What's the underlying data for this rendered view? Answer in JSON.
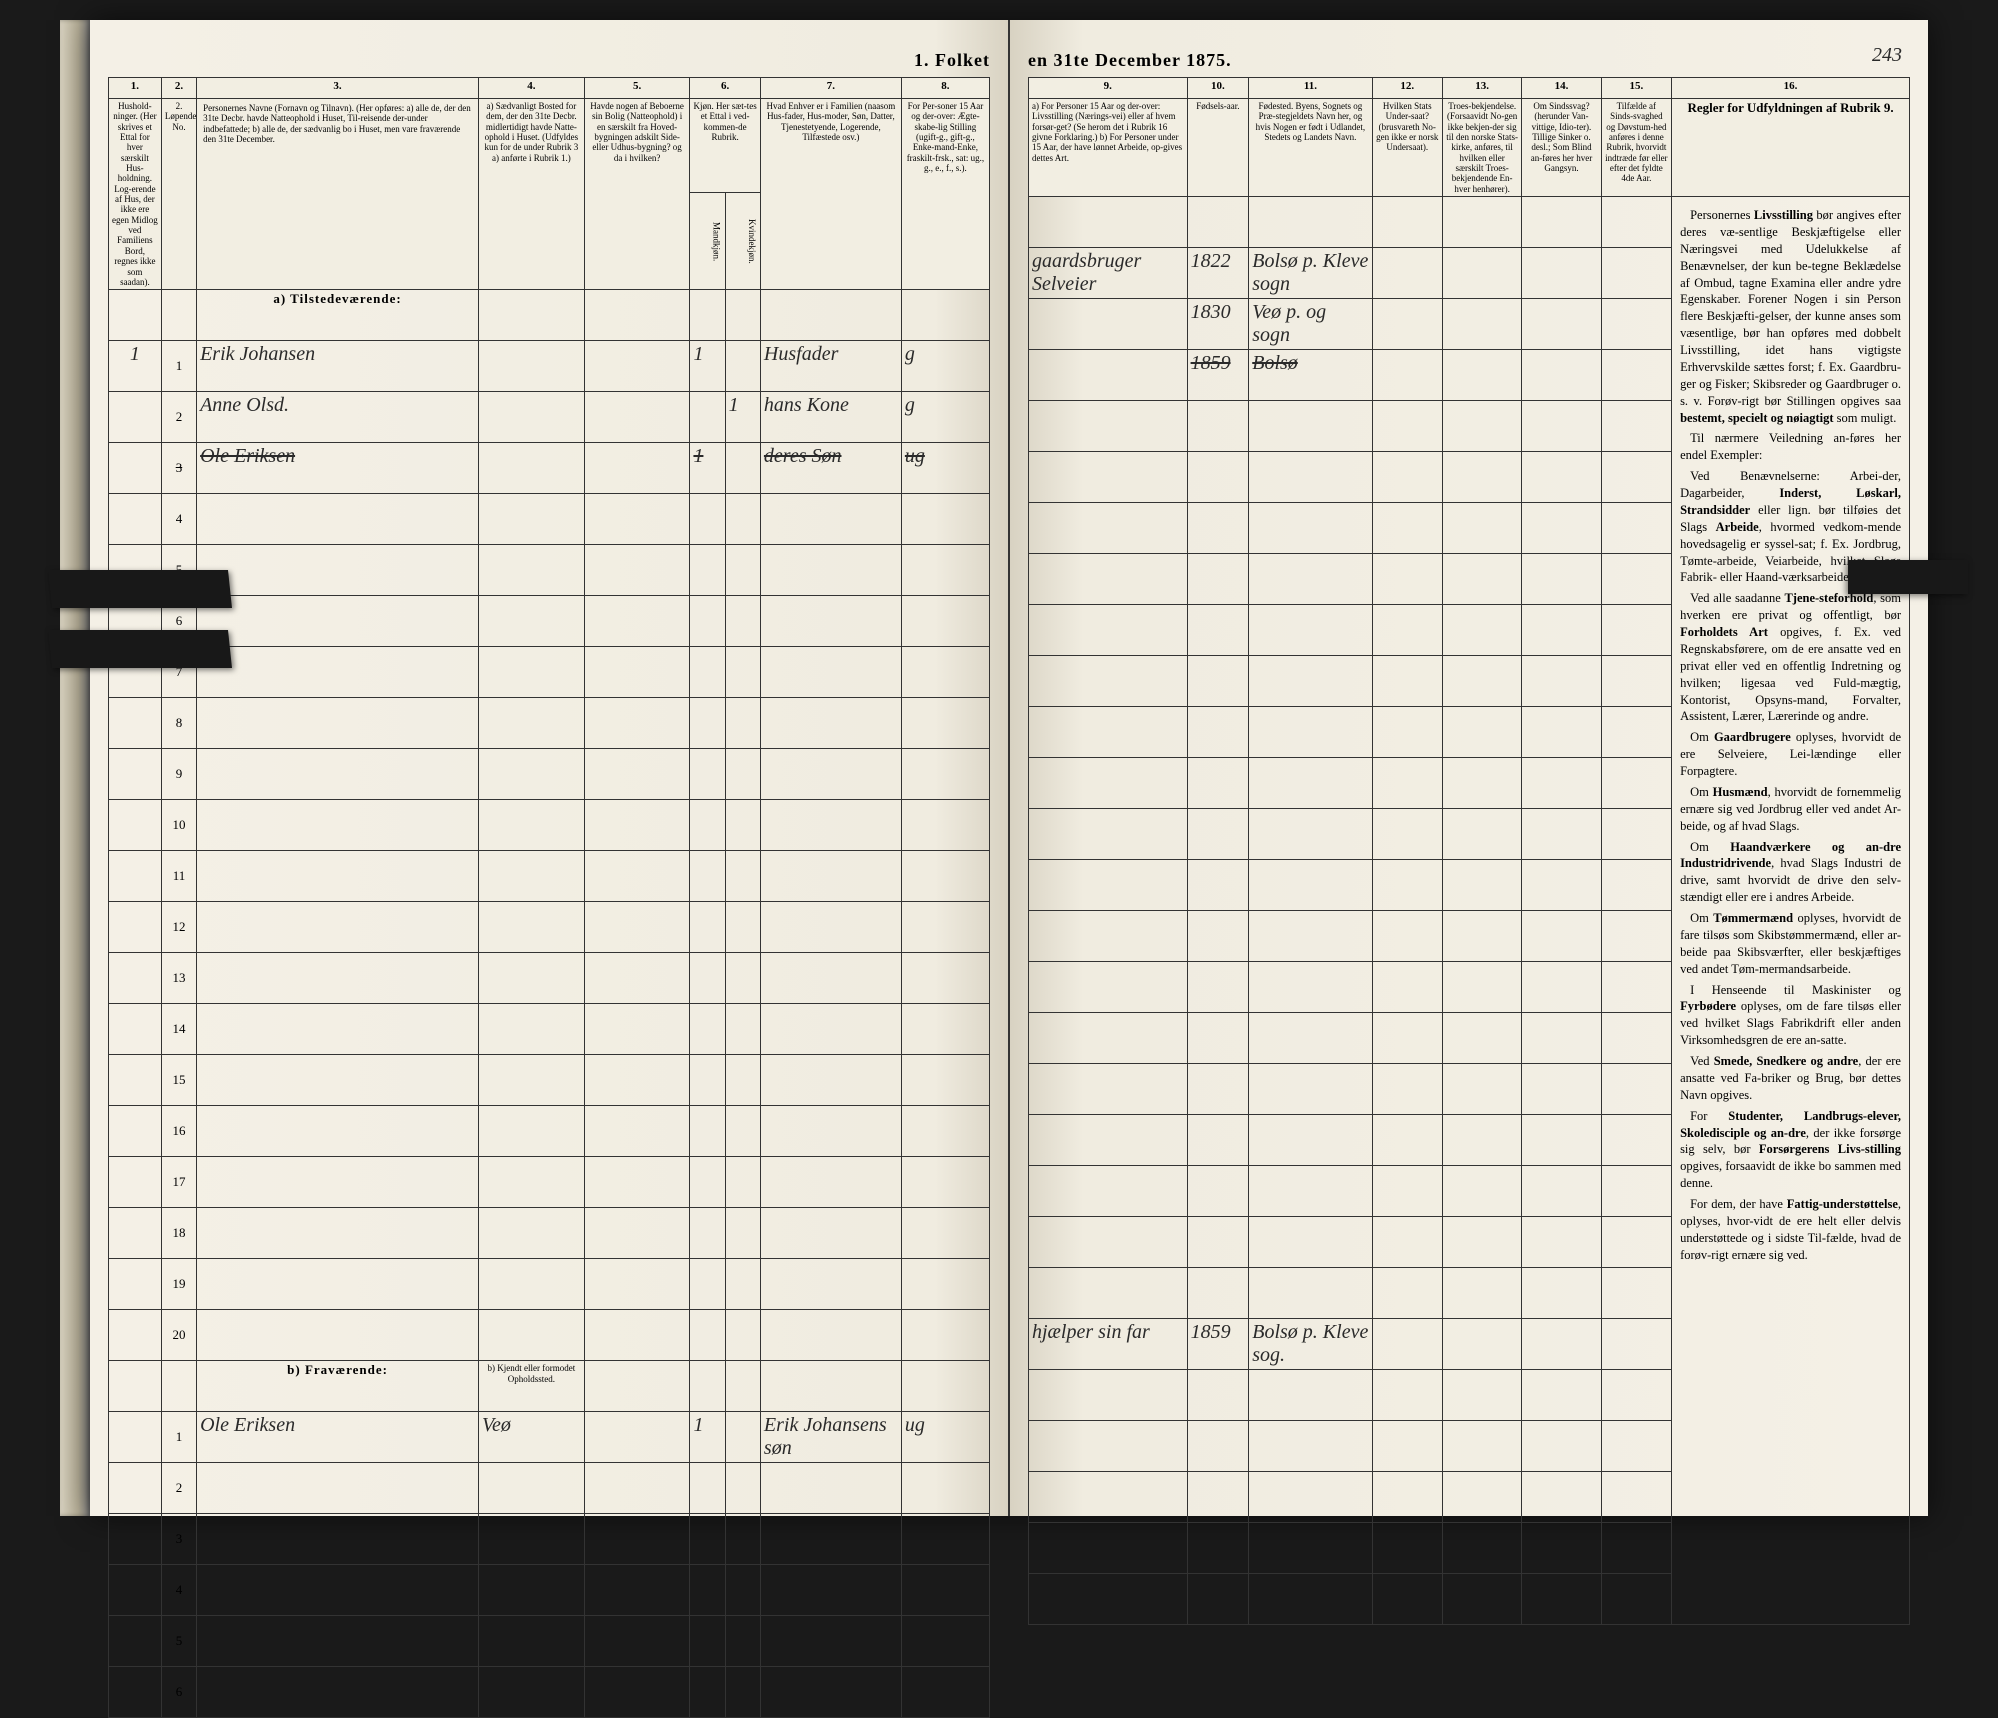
{
  "header": {
    "title_left": "1.  Folket",
    "title_right": "en 31te December 1875.",
    "page_number": "243"
  },
  "left": {
    "colnums": [
      "1.",
      "2.",
      "3.",
      "4.",
      "5.",
      "6.",
      "7.",
      "8."
    ],
    "heads": {
      "c1": "Hushold-\nninger.\n(Her skrives et Ettal for hver særskilt Hus-holdning. Log-erende af Hus, der ikke ere egen Midlog ved Familiens Bord, regnes ikke som saadan).",
      "c2": "2.\nLøpende No.",
      "c3": "Personernes Navne (Fornavn og Tilnavn).\n(Her opføres:\na)  alle de, der den 31te Decbr. havde Natteophold i Huset, Til-reisende der-under indbefattede;\nb)  alle de, der sædvanlig bo i Huset, men vare fraværende den 31te December.",
      "c4": "a)  Sædvanligt Bosted for dem, der den 31te Decbr. midlertidigt havde Natte-ophold i Huset. (Udfyldes kun for de under Rubrik 3 a) anførte i Rubrik 1.)",
      "c5": "Havde nogen af Beboerne sin Bolig (Natteophold) i en særskilt fra Hoved-bygningen adskilt Side-eller Udhus-bygning? og da i hvilken?",
      "c6": "Kjøn.\nHer sæt-tes et Ettal i ved-kommen-de Rubrik.",
      "c6a": "Mandkjøn.",
      "c6b": "Kvindekjøn.",
      "c7": "Hvad Enhver er i Familien (naasom Hus-fader, Hus-moder, Søn, Datter, Tjenestetyende, Logerende, Tilfæstede osv.)",
      "c8": "For Per-soner 15 Aar og der-over: Ægte-skabe-lig Stilling (ugift-g., gift-g., Enke-mand-Enke, fraskilt-frsk., sat: ug., g., e., f., s.)."
    },
    "section_a": "a)  Tilstedeværende:",
    "rows_a": [
      {
        "n": "1",
        "hh": "1",
        "name": "Erik Johansen",
        "c4": "",
        "c5": "",
        "m": "1",
        "k": "",
        "rel": "Husfader",
        "stat": "g"
      },
      {
        "n": "2",
        "hh": "",
        "name": "Anne Olsd.",
        "c4": "",
        "c5": "",
        "m": "",
        "k": "1",
        "rel": "hans Kone",
        "stat": "g"
      },
      {
        "n": "3",
        "hh": "",
        "name": "Ole Eriksen",
        "c4": "",
        "c5": "",
        "m": "1",
        "k": "",
        "rel": "deres Søn",
        "stat": "ug",
        "strike": true
      },
      {
        "n": "4"
      },
      {
        "n": "5"
      },
      {
        "n": "6"
      },
      {
        "n": "7"
      },
      {
        "n": "8"
      },
      {
        "n": "9"
      },
      {
        "n": "10"
      },
      {
        "n": "11"
      },
      {
        "n": "12"
      },
      {
        "n": "13"
      },
      {
        "n": "14"
      },
      {
        "n": "15"
      },
      {
        "n": "16"
      },
      {
        "n": "17"
      },
      {
        "n": "18"
      },
      {
        "n": "19"
      },
      {
        "n": "20"
      }
    ],
    "section_b": "b)  Fraværende:",
    "section_b_c4": "b)  Kjendt eller formodet Opholdssted.",
    "rows_b": [
      {
        "n": "1",
        "hh": "",
        "name": "Ole Eriksen",
        "c4": "Veø",
        "c5": "",
        "m": "1",
        "k": "",
        "rel": "Erik Johansens søn",
        "stat": "ug"
      },
      {
        "n": "2"
      },
      {
        "n": "3"
      },
      {
        "n": "4"
      },
      {
        "n": "5"
      },
      {
        "n": "6"
      }
    ]
  },
  "right": {
    "colnums": [
      "9.",
      "10.",
      "11.",
      "12.",
      "13.",
      "14.",
      "15.",
      "16."
    ],
    "heads": {
      "c9": "a) For Personer 15 Aar og der-over: Livsstilling (Nærings-vei) eller af hvem forsør-get? (Se herom det i Rubrik 16 givne Forklaring.)\nb) For Personer under 15 Aar, der have lønnet Arbeide, op-gives dettes Art.",
      "c10": "Fødsels-aar.",
      "c11": "Fødested.\nByens, Sognets og Præ-stegjeldets Navn her, og hvis Nogen er født i Udlandet, Stedets og Landets Navn.",
      "c12": "Hvilken Stats Under-saat?\n(brusvareth No-gen ikke er norsk Undersaat).",
      "c13": "Troes-bekjendelse.\n(Forsaavidt No-gen ikke bekjen-der sig til den norske Stats-kirke, anføres, til hvilken eller særskilt Troes-bekjendende En-hver henhører).",
      "c14": "Om Sindssvag? (herunder Van-vittige, Idio-ter). Tillige Sinker o. desl.; Som Blind an-føres her hver Gangsyn.",
      "c15": "Tilfælde af Sinds-svaghed og Døvstum-hed anføres i denne Rubrik, hvorvidt indtræde før eller efter det fyldte 4de Aar.",
      "c16": "Regler for Udfyldningen\naf\nRubrik 9."
    },
    "rows_a": [
      {
        "occ": "gaardsbruger Selveier",
        "yr": "1822",
        "birth": "Bolsø p. Kleve sogn"
      },
      {
        "occ": "",
        "yr": "1830",
        "birth": "Veø p. og sogn"
      },
      {
        "occ": "",
        "yr": "1859",
        "birth": "Bolsø",
        "strike": true
      },
      {},
      {},
      {},
      {},
      {},
      {},
      {},
      {},
      {},
      {},
      {},
      {},
      {},
      {},
      {},
      {},
      {}
    ],
    "rows_b": [
      {
        "occ": "hjælper sin far",
        "yr": "1859",
        "birth": "Bolsø p. Kleve sog."
      },
      {},
      {},
      {},
      {},
      {}
    ],
    "rules": [
      "Personernes <b>Livsstilling</b> bør angives efter deres væ-sentlige Beskjæftigelse eller Næringsvei med Udelukkelse af Benævnelser, der kun be-tegne Beklædelse af Ombud, tagne Examina eller andre ydre Egenskaber. Forener Nogen i sin Person flere Beskjæfti-gelser, der kunne anses som væsentlige, bør han opføres med dobbelt Livsstilling, idet hans vigtigste Erhvervskilde sættes forst; f. Ex. Gaardbru-ger og Fisker; Skibsreder og Gaardbruger o. s. v. Forøv-rigt bør Stillingen opgives saa <b>bestemt, specielt og nøiagtigt</b> som muligt.",
      "Til nærmere Veiledning an-føres her endel Exempler:",
      "Ved Benævnelserne: Arbei-der, Dagarbeider, <b>Inderst, Løskarl, Strandsidder</b> eller lign. bør tilføies det Slags <b>Arbeide</b>, hvormed vedkom-mende hovedsagelig er syssel-sat; f. Ex. Jordbrug, Tømte-arbeide, Veiarbeide, hvilket Slags Fabrik- eller Haand-værksarbeide o. s. v.",
      "Ved alle saadanne <b>Tjene-steforhold</b>, som hverken ere privat og offentligt, bør <b>Forholdets Art</b> opgives, f. Ex. ved Regnskabsførere, om de ere ansatte ved en privat eller ved en offentlig Indretning og hvilken; ligesaa ved Fuld-mægtig, Kontorist, Opsyns-mand, Forvalter, Assistent, Lærer, Lærerinde og andre.",
      "Om <b>Gaardbrugere</b> oplyses, hvorvidt de ere Selveiere, Lei-lændinge eller Forpagtere.",
      "Om <b>Husmænd</b>, hvorvidt de fornemmelig ernære sig ved Jordbrug eller ved andet Ar-beide, og af hvad Slags.",
      "Om <b>Haandværkere og an-dre Industridrivende</b>, hvad Slags Industri de drive, samt hvorvidt de drive den selv-stændigt eller ere i andres Arbeide.",
      "Om <b>Tømmermænd</b> oplyses, hvorvidt de fare tilsøs som Skibstømmermænd, eller ar-beide paa Skibsværfter, eller beskjæftiges ved andet Tøm-mermandsarbeide.",
      "I Henseende til Maskinister og <b>Fyrbødere</b> oplyses, om de fare tilsøs eller ved hvilket Slags Fabrikdrift eller anden Virksomhedsgren de ere an-satte.",
      "Ved <b>Smede, Snedkere og andre</b>, der ere ansatte ved Fa-briker og Brug, bør dettes Navn opgives.",
      "For <b>Studenter, Landbrugs-elever, Skoledisciple og an-dre</b>, der ikke forsørge sig selv, bør <b>Forsørgerens Livs-stilling</b> opgives, forsaavidt de ikke bo sammen med denne.",
      "For dem, der have <b>Fattig-understøttelse</b>, oplyses, hvor-vidt de ere helt eller delvis understøttede og i sidste Til-fælde, hvad de forøv-rigt ernære sig ved."
    ]
  },
  "layout": {
    "left_widths": [
      "6%",
      "4%",
      "32%",
      "12%",
      "12%",
      "4%",
      "4%",
      "16%",
      "10%"
    ],
    "right_widths": [
      "18%",
      "7%",
      "14%",
      "8%",
      "9%",
      "9%",
      "8%",
      "27%"
    ],
    "rules_rowspan": 27
  },
  "colors": {
    "paper": "#f4f0e6",
    "ink": "#2a2a2a",
    "border": "#333333",
    "dark": "#1a1a1a"
  }
}
